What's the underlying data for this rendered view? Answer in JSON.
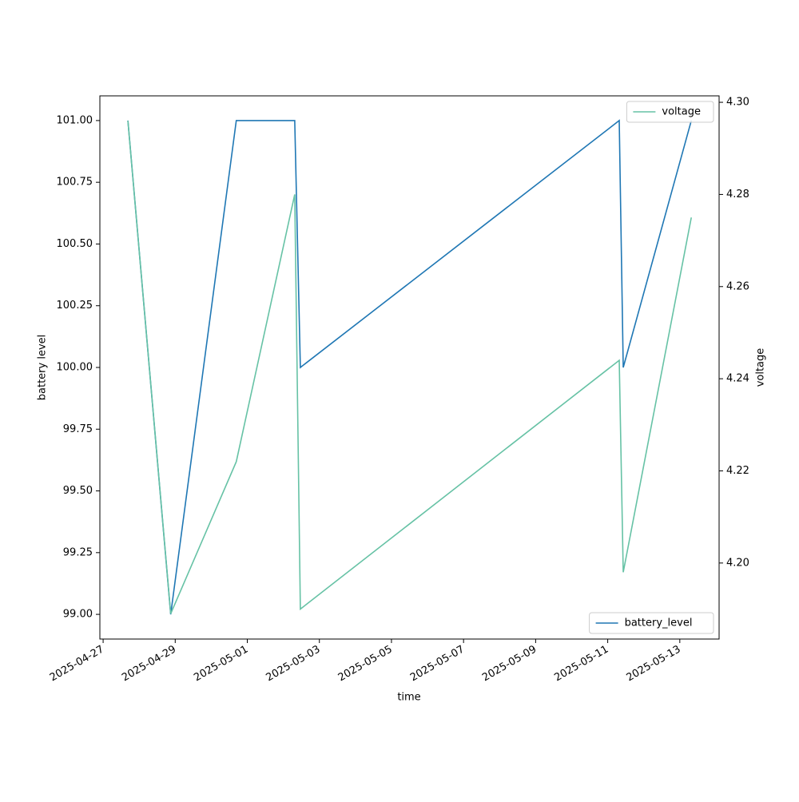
{
  "chart_data": {
    "type": "line",
    "x_label": "time",
    "y_label": "battery level",
    "y2_label": "voltage",
    "x": [
      "2025-04-27 16:30",
      "2025-04-28 21:00",
      "2025-04-30 16:40",
      "2025-05-02 07:35",
      "2025-05-02 11:20",
      "2025-05-11 07:40",
      "2025-05-11 10:20",
      "2025-05-13 07:40"
    ],
    "series": [
      {
        "name": "battery_level",
        "color": "#1f77b4",
        "values": [
          101,
          99,
          101,
          101,
          100,
          101,
          100,
          101
        ]
      },
      {
        "name": "voltage",
        "color": "#66c2a5",
        "axis": "y2",
        "values": [
          4.296,
          4.189,
          4.222,
          4.28,
          4.19,
          4.244,
          4.198,
          4.275
        ]
      }
    ],
    "xlim": [
      "2025-04-26 21:50",
      "2025-05-14 02:10"
    ],
    "xticks": [
      "2025-04-27",
      "2025-04-29",
      "2025-05-01",
      "2025-05-03",
      "2025-05-05",
      "2025-05-07",
      "2025-05-09",
      "2025-05-11",
      "2025-05-13"
    ],
    "ylim": [
      98.9,
      101.1
    ],
    "yticks": [
      {
        "value": 99,
        "label": "99.00"
      },
      {
        "value": 99.25,
        "label": "99.25"
      },
      {
        "value": 99.5,
        "label": "99.50"
      },
      {
        "value": 99.75,
        "label": "99.75"
      },
      {
        "value": 100,
        "label": "100.00"
      },
      {
        "value": 100.25,
        "label": "100.25"
      },
      {
        "value": 100.5,
        "label": "100.50"
      },
      {
        "value": 100.75,
        "label": "100.75"
      },
      {
        "value": 101,
        "label": "101.00"
      }
    ],
    "y2lim": [
      4.1835,
      4.3014
    ],
    "y2ticks": [
      {
        "value": 4.2,
        "label": "4.20"
      },
      {
        "value": 4.22,
        "label": "4.22"
      },
      {
        "value": 4.24,
        "label": "4.24"
      },
      {
        "value": 4.26,
        "label": "4.26"
      },
      {
        "value": 4.28,
        "label": "4.28"
      },
      {
        "value": 4.3,
        "label": "4.30"
      }
    ],
    "legend_y": "lower right",
    "legend_y2": "upper right"
  }
}
